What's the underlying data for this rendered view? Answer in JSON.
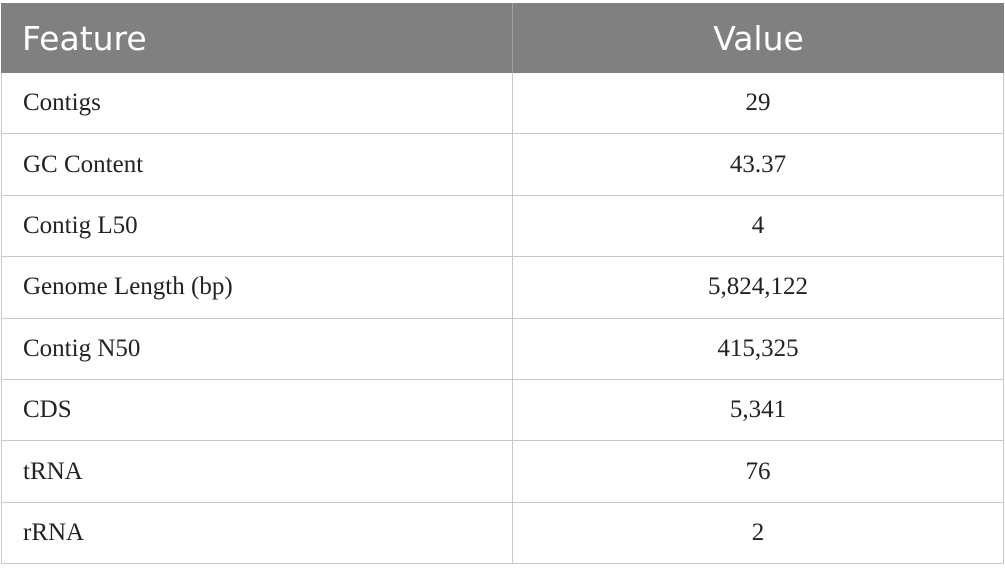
{
  "table": {
    "header": [
      "Feature",
      "Value"
    ],
    "rows": [
      [
        "Contigs",
        "29"
      ],
      [
        "GC Content",
        "43.37"
      ],
      [
        "Contig L50",
        "4"
      ],
      [
        "Genome Length (bp)",
        "5,824,122"
      ],
      [
        "Contig N50",
        "415,325"
      ],
      [
        "CDS",
        "5,341"
      ],
      [
        "tRNA",
        "76"
      ],
      [
        "rRNA",
        "2"
      ]
    ]
  }
}
